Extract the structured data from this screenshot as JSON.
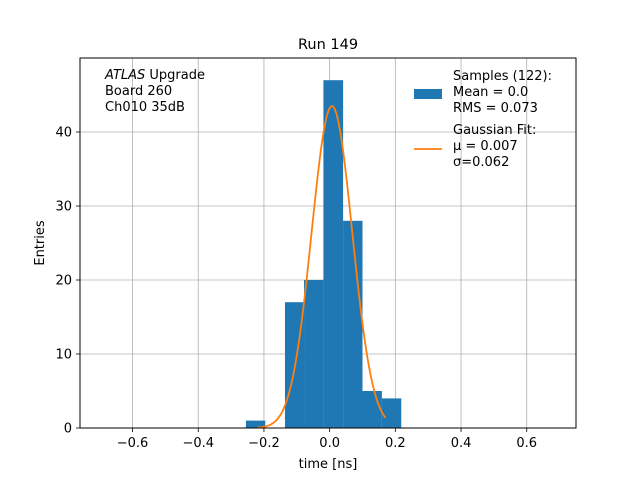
{
  "chart_data": {
    "type": "bar",
    "title": "Run 149",
    "xlabel": "time [ns]",
    "ylabel": "Entries",
    "xlim": [
      -0.76,
      0.75
    ],
    "ylim": [
      0,
      50
    ],
    "grid": true,
    "xticks": [
      -0.6,
      -0.4,
      -0.2,
      0.0,
      0.2,
      0.4,
      0.6
    ],
    "xtick_labels": [
      "−0.6",
      "−0.4",
      "−0.2",
      "0.0",
      "0.2",
      "0.4",
      "0.6"
    ],
    "yticks": [
      0,
      10,
      20,
      30,
      40
    ],
    "ytick_labels": [
      "0",
      "10",
      "20",
      "30",
      "40"
    ],
    "histogram": {
      "color": "#1f77b4",
      "bins": [
        {
          "x0": -0.255,
          "x1": -0.196,
          "count": 1
        },
        {
          "x0": -0.136,
          "x1": -0.078,
          "count": 17
        },
        {
          "x0": -0.078,
          "x1": -0.019,
          "count": 20
        },
        {
          "x0": -0.019,
          "x1": 0.041,
          "count": 47
        },
        {
          "x0": 0.041,
          "x1": 0.1,
          "count": 28
        },
        {
          "x0": 0.1,
          "x1": 0.159,
          "count": 5
        },
        {
          "x0": 0.159,
          "x1": 0.218,
          "count": 4
        }
      ]
    },
    "fit": {
      "color": "#ff7f0e",
      "mu": 0.007,
      "sigma": 0.062,
      "amplitude": 43.5,
      "x_range": [
        -0.22,
        0.17
      ]
    },
    "annotation_lines": [
      {
        "italic": "ATLAS",
        "rest": " Upgrade"
      },
      {
        "italic": "",
        "rest": " Board 260"
      },
      {
        "italic": "",
        "rest": " Ch010 35dB"
      }
    ],
    "legend": {
      "placement": "top-right",
      "entries": [
        {
          "kind": "patch",
          "lines": [
            "Samples (122):",
            " Mean = 0.0",
            " RMS = 0.073"
          ]
        },
        {
          "kind": "line",
          "lines": [
            "Gaussian Fit:",
            " μ = 0.007",
            " σ=0.062"
          ]
        }
      ]
    }
  }
}
